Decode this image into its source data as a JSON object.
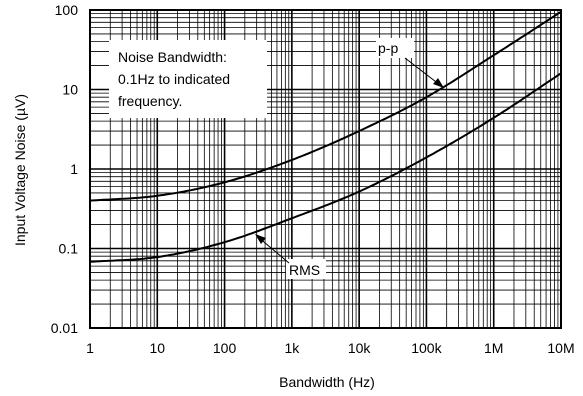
{
  "chart_data": {
    "type": "line",
    "title": "",
    "xlabel": "Bandwidth (Hz)",
    "ylabel": "Input Voltage Noise (µV)",
    "xscale": "log",
    "yscale": "log",
    "xlim": [
      1,
      10000000
    ],
    "ylim": [
      0.01,
      100
    ],
    "grid": true,
    "x_ticks": [
      {
        "value": 1,
        "label": "1"
      },
      {
        "value": 10,
        "label": "10"
      },
      {
        "value": 100,
        "label": "100"
      },
      {
        "value": 1000,
        "label": "1k"
      },
      {
        "value": 10000,
        "label": "10k"
      },
      {
        "value": 100000,
        "label": "100k"
      },
      {
        "value": 1000000,
        "label": "1M"
      },
      {
        "value": 10000000,
        "label": "10M"
      }
    ],
    "y_ticks": [
      {
        "value": 0.01,
        "label": "0.01"
      },
      {
        "value": 0.1,
        "label": "0.1"
      },
      {
        "value": 1,
        "label": "1"
      },
      {
        "value": 10,
        "label": "10"
      },
      {
        "value": 100,
        "label": "100"
      }
    ],
    "series": [
      {
        "name": "p-p",
        "x": [
          1,
          10,
          100,
          1000,
          10000,
          100000,
          1000000,
          10000000
        ],
        "y": [
          0.4,
          0.46,
          0.68,
          1.3,
          3.0,
          8.0,
          27,
          95
        ]
      },
      {
        "name": "RMS",
        "x": [
          1,
          10,
          100,
          1000,
          10000,
          100000,
          1000000,
          10000000
        ],
        "y": [
          0.068,
          0.078,
          0.12,
          0.24,
          0.52,
          1.4,
          4.4,
          16
        ]
      }
    ],
    "annotations": {
      "note_lines": [
        "Noise Bandwidth:",
        "0.1Hz to indicated",
        "frequency."
      ]
    }
  }
}
